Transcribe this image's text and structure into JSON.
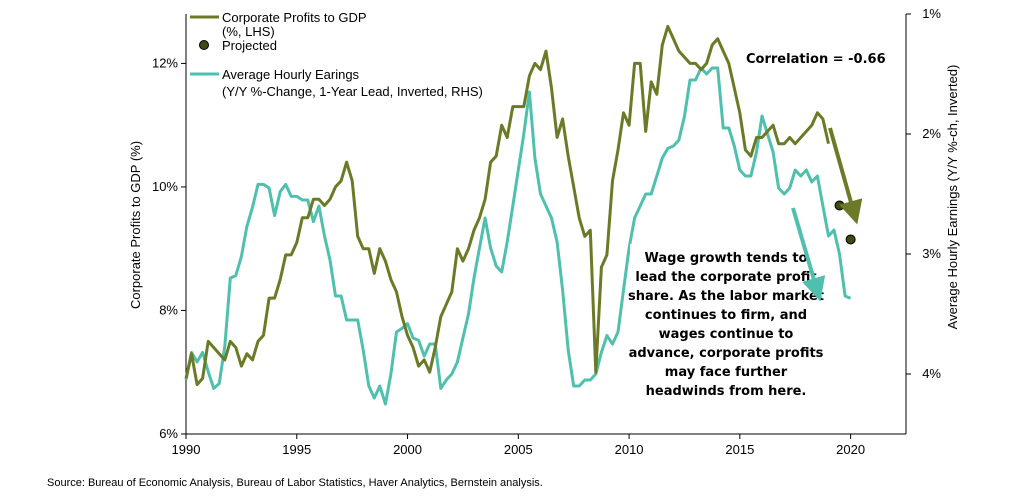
{
  "chart_data": {
    "type": "line",
    "source": "Source: Bureau of Economic Analysis, Bureau of Labor Statistics, Haver Analytics, Bernstein analysis.",
    "xlim": [
      1990,
      2022.5
    ],
    "x_ticks": [
      "1990",
      "1995",
      "2000",
      "2005",
      "2010",
      "2015",
      "2020"
    ],
    "y_left": {
      "label": "Corporate  Profits to GDP (%)",
      "lim": [
        6,
        12.8
      ],
      "ticks": [
        "6%",
        "8%",
        "10%",
        "12%"
      ]
    },
    "y_right": {
      "label": "Average  Hourly  Earnings (Y/Y %-ch, Inverted)",
      "lim": [
        1,
        4.5
      ],
      "inverted": true,
      "ticks": [
        "1%",
        "2%",
        "3%",
        "4%"
      ]
    },
    "legend": [
      {
        "label": "Corporate Profits to GDP",
        "sublabel": "(%, LHS)",
        "color": "#6b7a26",
        "marker": "line"
      },
      {
        "label": "Projected",
        "sublabel": "",
        "color": "#4a5a1a",
        "marker": "dot"
      },
      {
        "label": "Average Hourly Earings",
        "sublabel": "(Y/Y %-Change, 1-Year Lead, Inverted, RHS)",
        "color": "#4fc0ad",
        "marker": "line"
      }
    ],
    "correlation_text": "Correlation = -0.66",
    "annotation_lines": [
      "Wage growth tends to",
      "lead the corporate profit",
      "share. As the labor market",
      "continues to firm, and",
      "wages continue to",
      "advance, corporate profits",
      "may face further",
      "headwinds from here."
    ],
    "series": [
      {
        "name": "Corporate Profits to GDP (%, LHS)",
        "axis": "left",
        "color": "#6b7a26",
        "points": [
          [
            1990.0,
            6.9
          ],
          [
            1990.25,
            7.3
          ],
          [
            1990.5,
            6.8
          ],
          [
            1990.75,
            6.9
          ],
          [
            1991.0,
            7.5
          ],
          [
            1991.25,
            7.4
          ],
          [
            1991.5,
            7.3
          ],
          [
            1991.75,
            7.2
          ],
          [
            1992.0,
            7.5
          ],
          [
            1992.25,
            7.4
          ],
          [
            1992.5,
            7.1
          ],
          [
            1992.75,
            7.3
          ],
          [
            1993.0,
            7.2
          ],
          [
            1993.25,
            7.5
          ],
          [
            1993.5,
            7.6
          ],
          [
            1993.75,
            8.2
          ],
          [
            1994.0,
            8.2
          ],
          [
            1994.25,
            8.5
          ],
          [
            1994.5,
            8.9
          ],
          [
            1994.75,
            8.9
          ],
          [
            1995.0,
            9.1
          ],
          [
            1995.25,
            9.5
          ],
          [
            1995.5,
            9.5
          ],
          [
            1995.75,
            9.8
          ],
          [
            1996.0,
            9.8
          ],
          [
            1996.25,
            9.7
          ],
          [
            1996.5,
            9.8
          ],
          [
            1996.75,
            10.0
          ],
          [
            1997.0,
            10.1
          ],
          [
            1997.25,
            10.4
          ],
          [
            1997.5,
            10.1
          ],
          [
            1997.75,
            9.2
          ],
          [
            1998.0,
            9.0
          ],
          [
            1998.25,
            9.0
          ],
          [
            1998.5,
            8.6
          ],
          [
            1998.75,
            9.0
          ],
          [
            1999.0,
            8.8
          ],
          [
            1999.25,
            8.5
          ],
          [
            1999.5,
            8.3
          ],
          [
            1999.75,
            7.9
          ],
          [
            2000.0,
            7.6
          ],
          [
            2000.25,
            7.4
          ],
          [
            2000.5,
            7.1
          ],
          [
            2000.75,
            7.2
          ],
          [
            2001.0,
            7.0
          ],
          [
            2001.25,
            7.4
          ],
          [
            2001.5,
            7.9
          ],
          [
            2001.75,
            8.1
          ],
          [
            2002.0,
            8.3
          ],
          [
            2002.25,
            9.0
          ],
          [
            2002.5,
            8.8
          ],
          [
            2002.75,
            9.0
          ],
          [
            2003.0,
            9.3
          ],
          [
            2003.25,
            9.5
          ],
          [
            2003.5,
            9.8
          ],
          [
            2003.75,
            10.4
          ],
          [
            2004.0,
            10.5
          ],
          [
            2004.25,
            11.0
          ],
          [
            2004.5,
            10.8
          ],
          [
            2004.75,
            11.3
          ],
          [
            2005.0,
            11.3
          ],
          [
            2005.25,
            11.3
          ],
          [
            2005.5,
            11.8
          ],
          [
            2005.75,
            12.0
          ],
          [
            2006.0,
            11.9
          ],
          [
            2006.25,
            12.2
          ],
          [
            2006.5,
            11.6
          ],
          [
            2006.75,
            10.8
          ],
          [
            2007.0,
            11.1
          ],
          [
            2007.25,
            10.5
          ],
          [
            2007.5,
            10.0
          ],
          [
            2007.75,
            9.5
          ],
          [
            2008.0,
            9.2
          ],
          [
            2008.25,
            9.3
          ],
          [
            2008.5,
            7.0
          ],
          [
            2008.75,
            8.7
          ],
          [
            2009.0,
            8.9
          ],
          [
            2009.25,
            10.1
          ],
          [
            2009.5,
            10.6
          ],
          [
            2009.75,
            11.2
          ],
          [
            2010.0,
            11.0
          ],
          [
            2010.25,
            12.0
          ],
          [
            2010.5,
            12.0
          ],
          [
            2010.75,
            10.9
          ],
          [
            2011.0,
            11.7
          ],
          [
            2011.25,
            11.5
          ],
          [
            2011.5,
            12.3
          ],
          [
            2011.75,
            12.6
          ],
          [
            2012.0,
            12.4
          ],
          [
            2012.25,
            12.2
          ],
          [
            2012.5,
            12.1
          ],
          [
            2012.75,
            12.0
          ],
          [
            2013.0,
            12.0
          ],
          [
            2013.25,
            11.9
          ],
          [
            2013.5,
            12.0
          ],
          [
            2013.75,
            12.3
          ],
          [
            2014.0,
            12.4
          ],
          [
            2014.25,
            12.2
          ],
          [
            2014.5,
            12.0
          ],
          [
            2014.75,
            11.6
          ],
          [
            2015.0,
            11.2
          ],
          [
            2015.25,
            10.6
          ],
          [
            2015.5,
            10.5
          ],
          [
            2015.75,
            10.8
          ],
          [
            2016.0,
            10.8
          ],
          [
            2016.25,
            10.9
          ],
          [
            2016.5,
            11.0
          ],
          [
            2016.75,
            10.7
          ],
          [
            2017.0,
            10.7
          ],
          [
            2017.25,
            10.8
          ],
          [
            2017.5,
            10.7
          ],
          [
            2017.75,
            10.8
          ],
          [
            2018.0,
            10.9
          ],
          [
            2018.25,
            11.0
          ],
          [
            2018.5,
            11.2
          ],
          [
            2018.75,
            11.1
          ],
          [
            2019.0,
            10.7
          ]
        ]
      },
      {
        "name": "Average Hourly Earings (Y/Y %-Change, 1-Year Lead, Inverted, RHS)",
        "axis": "right",
        "color": "#4fc0ad",
        "points": [
          [
            1990.0,
            4.05
          ],
          [
            1990.25,
            3.82
          ],
          [
            1990.5,
            3.9
          ],
          [
            1990.75,
            3.82
          ],
          [
            1991.0,
            3.98
          ],
          [
            1991.25,
            4.12
          ],
          [
            1991.5,
            4.08
          ],
          [
            1991.75,
            3.77
          ],
          [
            1992.0,
            3.2
          ],
          [
            1992.25,
            3.18
          ],
          [
            1992.5,
            3.02
          ],
          [
            1992.75,
            2.77
          ],
          [
            1993.0,
            2.61
          ],
          [
            1993.25,
            2.42
          ],
          [
            1993.5,
            2.42
          ],
          [
            1993.75,
            2.45
          ],
          [
            1994.0,
            2.68
          ],
          [
            1994.25,
            2.48
          ],
          [
            1994.5,
            2.42
          ],
          [
            1994.75,
            2.52
          ],
          [
            1995.0,
            2.52
          ],
          [
            1995.25,
            2.55
          ],
          [
            1995.5,
            2.55
          ],
          [
            1995.75,
            2.73
          ],
          [
            1996.0,
            2.6
          ],
          [
            1996.25,
            2.85
          ],
          [
            1996.5,
            3.05
          ],
          [
            1996.75,
            3.35
          ],
          [
            1997.0,
            3.35
          ],
          [
            1997.25,
            3.55
          ],
          [
            1997.5,
            3.55
          ],
          [
            1997.75,
            3.55
          ],
          [
            1998.0,
            3.8
          ],
          [
            1998.25,
            4.1
          ],
          [
            1998.5,
            4.2
          ],
          [
            1998.75,
            4.1
          ],
          [
            1999.0,
            4.25
          ],
          [
            1999.25,
            4.0
          ],
          [
            1999.5,
            3.65
          ],
          [
            1999.75,
            3.62
          ],
          [
            2000.0,
            3.58
          ],
          [
            2000.25,
            3.7
          ],
          [
            2000.5,
            3.72
          ],
          [
            2000.75,
            3.85
          ],
          [
            2001.0,
            3.75
          ],
          [
            2001.25,
            3.75
          ],
          [
            2001.5,
            4.12
          ],
          [
            2001.75,
            4.05
          ],
          [
            2002.0,
            4.0
          ],
          [
            2002.25,
            3.9
          ],
          [
            2002.5,
            3.7
          ],
          [
            2002.75,
            3.5
          ],
          [
            2003.0,
            3.2
          ],
          [
            2003.25,
            2.95
          ],
          [
            2003.5,
            2.7
          ],
          [
            2003.75,
            2.95
          ],
          [
            2004.0,
            3.1
          ],
          [
            2004.25,
            3.15
          ],
          [
            2004.5,
            2.9
          ],
          [
            2004.75,
            2.6
          ],
          [
            2005.0,
            2.3
          ],
          [
            2005.25,
            2.0
          ],
          [
            2005.5,
            1.65
          ],
          [
            2005.75,
            2.2
          ],
          [
            2006.0,
            2.5
          ],
          [
            2006.25,
            2.6
          ],
          [
            2006.5,
            2.7
          ],
          [
            2006.75,
            2.9
          ],
          [
            2007.0,
            3.3
          ],
          [
            2007.25,
            3.8
          ],
          [
            2007.5,
            4.1
          ],
          [
            2007.75,
            4.1
          ],
          [
            2008.0,
            4.05
          ],
          [
            2008.25,
            4.05
          ],
          [
            2008.5,
            4.0
          ],
          [
            2008.75,
            3.82
          ],
          [
            2009.0,
            3.68
          ],
          [
            2009.25,
            3.75
          ],
          [
            2009.5,
            3.65
          ],
          [
            2009.75,
            3.3
          ],
          [
            2010.0,
            2.95
          ],
          [
            2010.25,
            2.7
          ],
          [
            2010.5,
            2.6
          ],
          [
            2010.75,
            2.5
          ],
          [
            2011.0,
            2.5
          ],
          [
            2011.25,
            2.35
          ],
          [
            2011.5,
            2.2
          ],
          [
            2011.75,
            2.12
          ],
          [
            2012.0,
            2.1
          ],
          [
            2012.25,
            2.05
          ],
          [
            2012.5,
            1.85
          ],
          [
            2012.75,
            1.55
          ],
          [
            2013.0,
            1.55
          ],
          [
            2013.25,
            1.45
          ],
          [
            2013.5,
            1.5
          ],
          [
            2013.75,
            1.45
          ],
          [
            2014.0,
            1.45
          ],
          [
            2014.25,
            1.95
          ],
          [
            2014.5,
            1.95
          ],
          [
            2014.75,
            2.1
          ],
          [
            2015.0,
            2.3
          ],
          [
            2015.25,
            2.35
          ],
          [
            2015.5,
            2.35
          ],
          [
            2015.75,
            2.15
          ],
          [
            2016.0,
            1.85
          ],
          [
            2016.25,
            2.0
          ],
          [
            2016.5,
            2.15
          ],
          [
            2016.75,
            2.45
          ],
          [
            2017.0,
            2.5
          ],
          [
            2017.25,
            2.45
          ],
          [
            2017.5,
            2.3
          ],
          [
            2017.75,
            2.35
          ],
          [
            2018.0,
            2.3
          ],
          [
            2018.25,
            2.4
          ],
          [
            2018.5,
            2.35
          ],
          [
            2018.75,
            2.6
          ],
          [
            2019.0,
            2.85
          ],
          [
            2019.25,
            2.8
          ],
          [
            2019.5,
            3.0
          ],
          [
            2019.75,
            3.35
          ],
          [
            2020.0,
            3.37
          ]
        ]
      }
    ],
    "projected_points": [
      [
        2019.5,
        9.7
      ],
      [
        2020.0,
        9.15
      ]
    ]
  }
}
